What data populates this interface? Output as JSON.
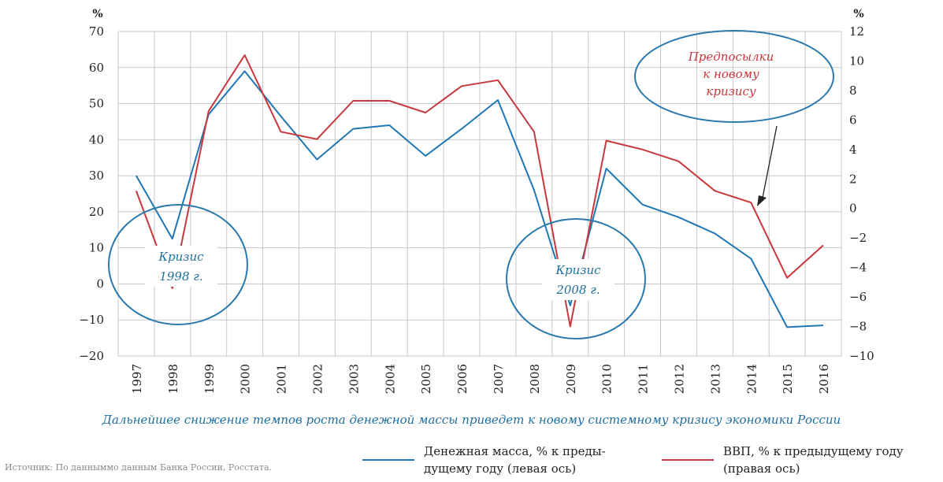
{
  "chart_data": {
    "type": "line",
    "categories": [
      "1997",
      "1998",
      "1999",
      "2000",
      "2001",
      "2002",
      "2003",
      "2004",
      "2005",
      "2006",
      "2007",
      "2008",
      "2009",
      "2010",
      "2011",
      "2012",
      "2013",
      "2014",
      "2015",
      "2016"
    ],
    "left_axis": {
      "unit": "%",
      "ylim": [
        -20,
        70
      ],
      "ticks": [
        -20,
        -10,
        0,
        10,
        20,
        30,
        40,
        50,
        60,
        70
      ]
    },
    "right_axis": {
      "unit": "%",
      "ylim": [
        -10,
        12
      ],
      "ticks": [
        -10,
        -8,
        -6,
        -4,
        -2,
        0,
        2,
        4,
        6,
        8,
        10,
        12
      ]
    },
    "series": [
      {
        "name": "Денежная масса, % к предыдущему году (левая ось)",
        "axis": "left",
        "color": "#1f77b4",
        "values": [
          30,
          12.5,
          47,
          59,
          46.5,
          34.5,
          43,
          44,
          35.5,
          43,
          51,
          26,
          -6,
          32,
          22,
          18.5,
          14,
          7,
          -12,
          -11.5
        ]
      },
      {
        "name": "ВВП, % к предыдущему году (правая ось)",
        "axis": "right",
        "color": "#c9373d",
        "values": [
          1.2,
          -5.4,
          6.6,
          10.4,
          5.2,
          4.7,
          7.3,
          7.3,
          6.5,
          8.3,
          8.7,
          5.2,
          -8.0,
          4.6,
          4.0,
          3.2,
          1.2,
          0.4,
          -4.7,
          -2.5
        ]
      }
    ],
    "grid": true,
    "legend": "bottom"
  },
  "axes": {
    "left_unit": "%",
    "right_unit": "%"
  },
  "annotations": {
    "crisis_1998": [
      "Кризис",
      "1998 г."
    ],
    "crisis_2008": [
      "Кризис",
      "2008 г."
    ],
    "new_crisis": [
      "Предпосылки",
      "к новому",
      "кризису"
    ]
  },
  "caption": "Дальнейшее снижение темпов роста денежной массы приведет к новому системному кризису экономики России",
  "legend": {
    "money": [
      "Денежная масса, % к преды-",
      "дущему году (левая ось)"
    ],
    "gdp": [
      "ВВП, % к предыдущему году",
      "(правая ось)"
    ]
  },
  "source": "Источник: По данныммо данным Банка России, Росстата.",
  "colors": {
    "money": "#1f77b4",
    "gdp": "#c9373d",
    "annotation": "#1f6f9e",
    "grid": "#c8c8c8"
  }
}
